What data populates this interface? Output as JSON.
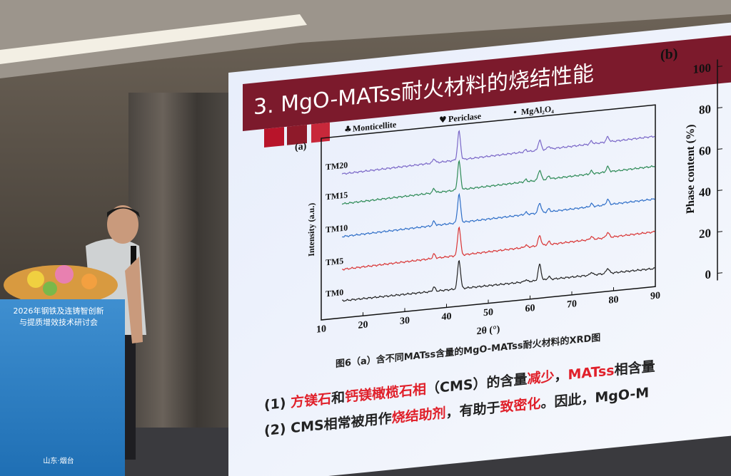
{
  "slide": {
    "title": "3. MgO-MATss耐火材料的烧结性能",
    "panel_a": {
      "label": "(a)",
      "legend": [
        "Monticellite",
        "Periclase",
        "MgAl₂O₄"
      ],
      "samples": [
        "TM20",
        "TM15",
        "TM10",
        "TM5",
        "TM0"
      ],
      "y_label": "Intensity (a.u.)",
      "x_label": "2θ (°)",
      "xlim": [
        10,
        90
      ],
      "xticks": [
        10,
        20,
        30,
        40,
        50,
        60,
        70,
        80,
        90
      ]
    },
    "panel_b": {
      "label": "(b)",
      "y_label": "Phase content (%)",
      "ylim": [
        0,
        100
      ],
      "yticks": [
        0,
        20,
        40,
        60,
        80,
        100
      ]
    },
    "caption": "图6（a）含不同MATss含量的MgO-MATss耐火材料的XRD图",
    "points": [
      [
        {
          "text": "(1) ",
          "color": "#222222"
        },
        {
          "text": "方镁石",
          "color": "#e0202a"
        },
        {
          "text": "和",
          "color": "#222222"
        },
        {
          "text": "钙镁橄榄石相",
          "color": "#e0202a"
        },
        {
          "text": "（CMS）的含量",
          "color": "#222222"
        },
        {
          "text": "减少",
          "color": "#e0202a"
        },
        {
          "text": "，",
          "color": "#222222"
        },
        {
          "text": "MATss",
          "color": "#e0202a"
        },
        {
          "text": "相含量",
          "color": "#222222"
        }
      ],
      [
        {
          "text": "(2) CMS相常被用作",
          "color": "#222222"
        },
        {
          "text": "烧结助剂",
          "color": "#e0202a"
        },
        {
          "text": "，有助于",
          "color": "#222222"
        },
        {
          "text": "致密化",
          "color": "#e0202a"
        },
        {
          "text": "。因此，MgO-M",
          "color": "#222222"
        }
      ]
    ]
  },
  "banner": {
    "lines": [
      "2026年钢铁及连铸智创新",
      "与提质增效技术研讨会"
    ],
    "footer": "山东·烟台"
  }
}
